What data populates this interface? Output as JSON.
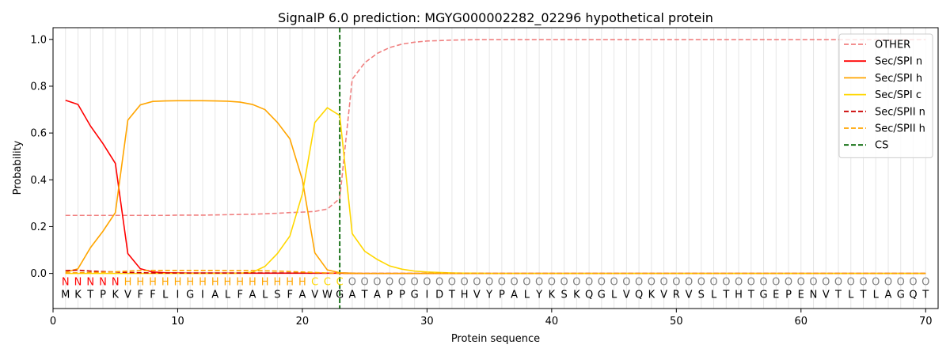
{
  "chart_data": {
    "type": "line",
    "title": "SignalP 6.0 prediction: MGYG000002282_02296 hypothetical protein",
    "xlabel": "Protein sequence",
    "ylabel": "Probability",
    "xlim": [
      0,
      71
    ],
    "ylim": [
      -0.15,
      1.05
    ],
    "xticks": [
      0,
      10,
      20,
      30,
      40,
      50,
      60,
      70
    ],
    "yticks": [
      0.0,
      0.2,
      0.4,
      0.6,
      0.8,
      1.0
    ],
    "ytick_labels": [
      "0.0",
      "0.2",
      "0.4",
      "0.6",
      "0.8",
      "1.0"
    ],
    "cleavage_site": 23,
    "sequence": [
      "M",
      "K",
      "T",
      "P",
      "K",
      "V",
      "F",
      "F",
      "L",
      "I",
      "G",
      "I",
      "A",
      "L",
      "F",
      "A",
      "L",
      "S",
      "F",
      "A",
      "V",
      "W",
      "G",
      "A",
      "T",
      "A",
      "P",
      "P",
      "G",
      "I",
      "D",
      "T",
      "H",
      "V",
      "Y",
      "P",
      "A",
      "L",
      "Y",
      "K",
      "S",
      "K",
      "Q",
      "G",
      "L",
      "V",
      "Q",
      "K",
      "V",
      "R",
      "V",
      "S",
      "L",
      "T",
      "H",
      "T",
      "G",
      "E",
      "P",
      "E",
      "N",
      "V",
      "T",
      "L",
      "T",
      "L",
      "A",
      "G",
      "Q",
      "T"
    ],
    "labels": [
      "N",
      "N",
      "N",
      "N",
      "N",
      "H",
      "H",
      "H",
      "H",
      "H",
      "H",
      "H",
      "H",
      "H",
      "H",
      "H",
      "H",
      "H",
      "H",
      "H",
      "C",
      "C",
      "C",
      "O",
      "O",
      "O",
      "O",
      "O",
      "O",
      "O",
      "O",
      "O",
      "O",
      "O",
      "O",
      "O",
      "O",
      "O",
      "O",
      "O",
      "O",
      "O",
      "O",
      "O",
      "O",
      "O",
      "O",
      "O",
      "O",
      "O",
      "O",
      "O",
      "O",
      "O",
      "O",
      "O",
      "O",
      "O",
      "O",
      "O",
      "O",
      "O",
      "O",
      "O",
      "O",
      "O",
      "O",
      "O",
      "O",
      "O"
    ],
    "label_colors": {
      "N": "#ff0000",
      "H": "#ffa500",
      "C": "#ffd700",
      "O": "#808080"
    },
    "series": [
      {
        "name": "OTHER",
        "color": "#f08080",
        "dash": true,
        "values": [
          0.248,
          0.248,
          0.248,
          0.248,
          0.248,
          0.248,
          0.248,
          0.248,
          0.248,
          0.249,
          0.249,
          0.249,
          0.25,
          0.251,
          0.252,
          0.253,
          0.255,
          0.257,
          0.26,
          0.262,
          0.265,
          0.275,
          0.32,
          0.83,
          0.9,
          0.94,
          0.965,
          0.98,
          0.988,
          0.993,
          0.995,
          0.997,
          0.998,
          0.999,
          0.999,
          0.999,
          0.999,
          0.999,
          0.999,
          0.999,
          0.999,
          0.999,
          0.999,
          0.999,
          0.999,
          0.999,
          0.999,
          0.999,
          0.999,
          0.999,
          0.999,
          0.999,
          0.999,
          0.999,
          0.999,
          0.999,
          0.999,
          0.999,
          0.999,
          0.999,
          0.999,
          0.999,
          0.999,
          0.999,
          0.999,
          0.999,
          0.999,
          0.999,
          0.999,
          0.999
        ]
      },
      {
        "name": "Sec/SPI n",
        "color": "#ff0000",
        "dash": false,
        "values": [
          0.74,
          0.722,
          0.63,
          0.555,
          0.47,
          0.085,
          0.02,
          0.006,
          0.003,
          0.002,
          0.001,
          0.001,
          0.001,
          0.001,
          0.001,
          0.001,
          0.001,
          0.001,
          0.001,
          0.001,
          0.001,
          0.001,
          0.001,
          0,
          0,
          0,
          0,
          0,
          0,
          0,
          0,
          0,
          0,
          0,
          0,
          0,
          0,
          0,
          0,
          0,
          0,
          0,
          0,
          0,
          0,
          0,
          0,
          0,
          0,
          0,
          0,
          0,
          0,
          0,
          0,
          0,
          0,
          0,
          0,
          0,
          0,
          0,
          0,
          0,
          0,
          0,
          0,
          0,
          0,
          0
        ]
      },
      {
        "name": "Sec/SPI h",
        "color": "#ffa500",
        "dash": false,
        "values": [
          0.005,
          0.02,
          0.11,
          0.18,
          0.26,
          0.655,
          0.72,
          0.735,
          0.737,
          0.738,
          0.738,
          0.738,
          0.737,
          0.736,
          0.732,
          0.722,
          0.7,
          0.645,
          0.575,
          0.4,
          0.088,
          0.015,
          0.003,
          0.001,
          0,
          0,
          0,
          0,
          0,
          0,
          0,
          0,
          0,
          0,
          0,
          0,
          0,
          0,
          0,
          0,
          0,
          0,
          0,
          0,
          0,
          0,
          0,
          0,
          0,
          0,
          0,
          0,
          0,
          0,
          0,
          0,
          0,
          0,
          0,
          0,
          0,
          0,
          0,
          0,
          0,
          0,
          0,
          0,
          0,
          0
        ]
      },
      {
        "name": "Sec/SPI c",
        "color": "#ffd700",
        "dash": false,
        "values": [
          0,
          0,
          0,
          0,
          0,
          0,
          0,
          0,
          0,
          0,
          0,
          0,
          0,
          0,
          0.001,
          0.005,
          0.03,
          0.085,
          0.16,
          0.34,
          0.645,
          0.708,
          0.675,
          0.17,
          0.095,
          0.06,
          0.032,
          0.018,
          0.01,
          0.006,
          0.004,
          0.002,
          0.001,
          0.001,
          0,
          0,
          0,
          0,
          0,
          0,
          0,
          0,
          0,
          0,
          0,
          0,
          0,
          0,
          0,
          0,
          0,
          0,
          0,
          0,
          0,
          0,
          0,
          0,
          0,
          0,
          0,
          0,
          0,
          0,
          0,
          0,
          0,
          0,
          0,
          0
        ]
      },
      {
        "name": "Sec/SPII n",
        "color": "#cc0000",
        "dash": true,
        "values": [
          0.012,
          0.014,
          0.01,
          0.008,
          0.006,
          0.004,
          0.003,
          0.002,
          0.002,
          0.002,
          0.002,
          0.002,
          0.002,
          0.002,
          0.002,
          0.002,
          0.002,
          0.002,
          0.002,
          0.002,
          0.001,
          0.001,
          0.001,
          0,
          0,
          0,
          0,
          0,
          0,
          0,
          0,
          0,
          0,
          0,
          0,
          0,
          0,
          0,
          0,
          0,
          0,
          0,
          0,
          0,
          0,
          0,
          0,
          0,
          0,
          0,
          0,
          0,
          0,
          0,
          0,
          0,
          0,
          0,
          0,
          0,
          0,
          0,
          0,
          0,
          0,
          0,
          0,
          0,
          0,
          0
        ]
      },
      {
        "name": "Sec/SPII h",
        "color": "#ffa500",
        "dash": true,
        "values": [
          0.002,
          0.003,
          0.004,
          0.005,
          0.007,
          0.01,
          0.012,
          0.013,
          0.013,
          0.013,
          0.013,
          0.013,
          0.013,
          0.012,
          0.012,
          0.012,
          0.011,
          0.01,
          0.008,
          0.006,
          0.004,
          0.002,
          0.001,
          0,
          0,
          0,
          0,
          0,
          0,
          0,
          0,
          0,
          0,
          0,
          0,
          0,
          0,
          0,
          0,
          0,
          0,
          0,
          0,
          0,
          0,
          0,
          0,
          0,
          0,
          0,
          0,
          0,
          0,
          0,
          0,
          0,
          0,
          0,
          0,
          0,
          0,
          0,
          0,
          0,
          0,
          0,
          0,
          0,
          0,
          0
        ]
      }
    ],
    "cs_legend": {
      "name": "CS",
      "color": "#006400",
      "dash": true
    },
    "legend_position": "top-right",
    "grid": "vertical"
  }
}
